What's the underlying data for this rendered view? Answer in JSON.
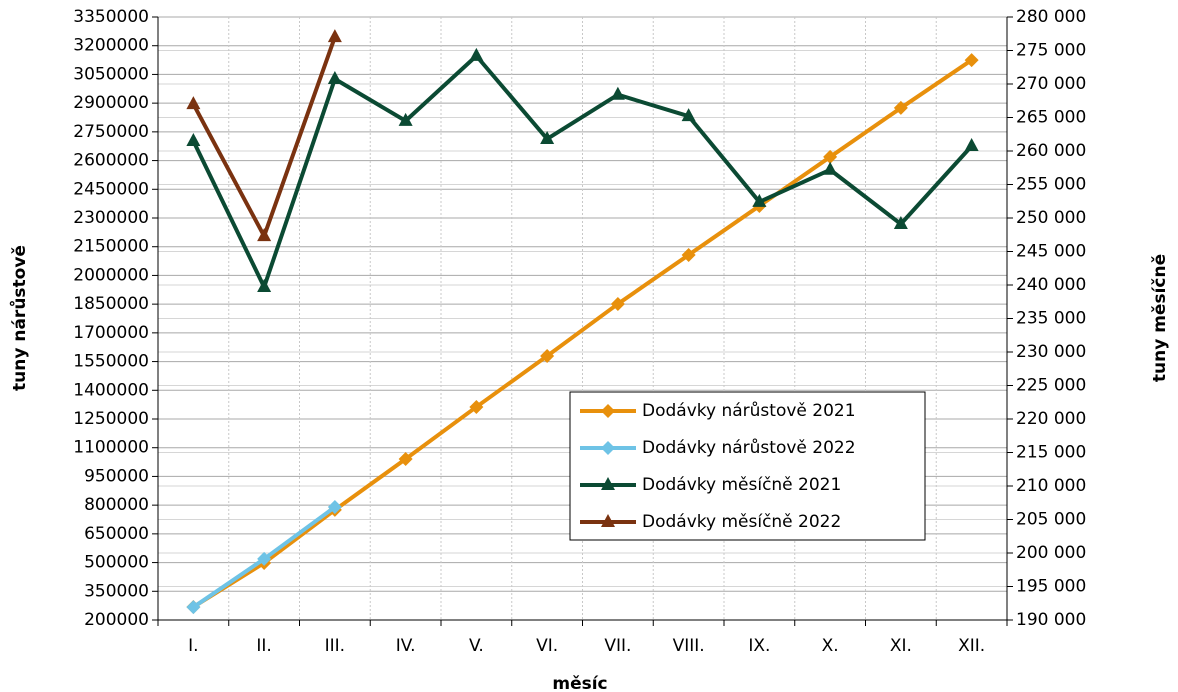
{
  "chart_data": {
    "type": "line",
    "x_label": "měsíc",
    "y_label": "tuny nárůstově",
    "y2_label": "tuny měsíčně",
    "categories": [
      "I.",
      "II.",
      "III.",
      "IV.",
      "V.",
      "VI.",
      "VII.",
      "VIII.",
      "IX.",
      "X.",
      "XI.",
      "XII."
    ],
    "ylim": [
      200000,
      3350000
    ],
    "yticks": [
      200000,
      350000,
      500000,
      650000,
      800000,
      950000,
      1100000,
      1250000,
      1400000,
      1550000,
      1700000,
      1850000,
      2000000,
      2150000,
      2300000,
      2450000,
      2600000,
      2750000,
      2900000,
      3050000,
      3200000,
      3350000
    ],
    "y2lim": [
      190000,
      280000
    ],
    "y2ticks": [
      {
        "value": 190000,
        "label": "190 000"
      },
      {
        "value": 195000,
        "label": "195 000"
      },
      {
        "value": 200000,
        "label": "200 000"
      },
      {
        "value": 205000,
        "label": "205 000"
      },
      {
        "value": 210000,
        "label": "210 000"
      },
      {
        "value": 215000,
        "label": "215 000"
      },
      {
        "value": 220000,
        "label": "220 000"
      },
      {
        "value": 225000,
        "label": "225 000"
      },
      {
        "value": 230000,
        "label": "230 000"
      },
      {
        "value": 235000,
        "label": "235 000"
      },
      {
        "value": 240000,
        "label": "240 000"
      },
      {
        "value": 245000,
        "label": "245 000"
      },
      {
        "value": 250000,
        "label": "250 000"
      },
      {
        "value": 255000,
        "label": "255 000"
      },
      {
        "value": 260000,
        "label": "260 000"
      },
      {
        "value": 265000,
        "label": "265 000"
      },
      {
        "value": 270000,
        "label": "270 000"
      },
      {
        "value": 275000,
        "label": "275 000"
      },
      {
        "value": 280000,
        "label": "280 000"
      }
    ],
    "grid": true,
    "legend": "center right",
    "series": [
      {
        "name": "Dodávky nárůstově 2021",
        "color": "#e8900c",
        "marker": "diamond",
        "axis": "y",
        "values": [
          268000,
          498000,
          775000,
          1041000,
          1313000,
          1579000,
          1851000,
          2107000,
          2363000,
          2619000,
          2875000,
          3125000
        ]
      },
      {
        "name": "Dodávky nárůstově 2022",
        "color": "#6ec3e6",
        "marker": "diamond",
        "axis": "y",
        "values": [
          267000,
          519000,
          790000,
          null,
          null,
          null,
          null,
          null,
          null,
          null,
          null,
          null
        ]
      },
      {
        "name": "Dodávky měsíčně 2021",
        "color": "#0b4a33",
        "marker": "triangle",
        "axis": "y2",
        "values": [
          261500,
          239700,
          270750,
          264500,
          274200,
          261800,
          268400,
          265200,
          252400,
          257200,
          249100,
          260750
        ]
      },
      {
        "name": "Dodávky měsíčně 2022",
        "color": "#7a3210",
        "marker": "triangle",
        "axis": "y2",
        "values": [
          267000,
          247300,
          277000,
          null,
          null,
          null,
          null,
          null,
          null,
          null,
          null,
          null
        ]
      }
    ]
  }
}
